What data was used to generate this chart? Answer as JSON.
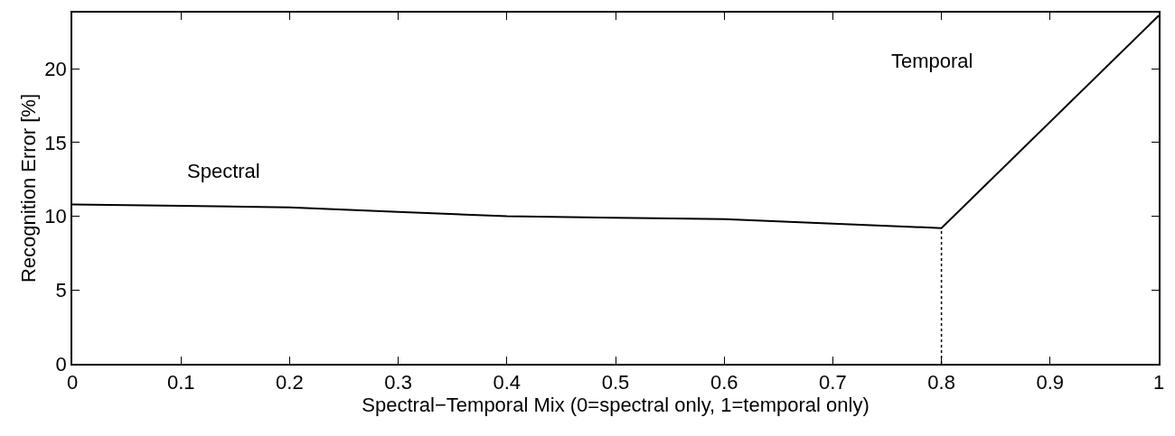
{
  "chart_data": {
    "type": "line",
    "xlabel": "Spectral−Temporal Mix (0=spectral only, 1=temporal only)",
    "ylabel": "Recognition Error [%]",
    "x": [
      0,
      0.1,
      0.2,
      0.3,
      0.4,
      0.5,
      0.6,
      0.7,
      0.8,
      1.0
    ],
    "series": [
      {
        "color": "#000000",
        "values": [
          10.8,
          10.7,
          10.6,
          10.3,
          10.0,
          9.9,
          9.8,
          9.5,
          9.2,
          23.6
        ]
      },
      {
        "color": "#000000",
        "x": [
          0.8,
          0.8
        ],
        "values": [
          0,
          9.2
        ],
        "line_style": "dotted"
      }
    ],
    "annotations": [
      "Spectral",
      "Temporal"
    ],
    "xlim": [
      0,
      1
    ],
    "xticks": [
      0,
      0.1,
      0.2,
      0.3,
      0.4,
      0.5,
      0.6,
      0.7,
      0.8,
      0.9,
      1
    ],
    "ylim": [
      0,
      23.8
    ],
    "yticks": [
      0,
      5,
      10,
      15,
      20
    ],
    "marker": "none",
    "line_style": "solid"
  }
}
